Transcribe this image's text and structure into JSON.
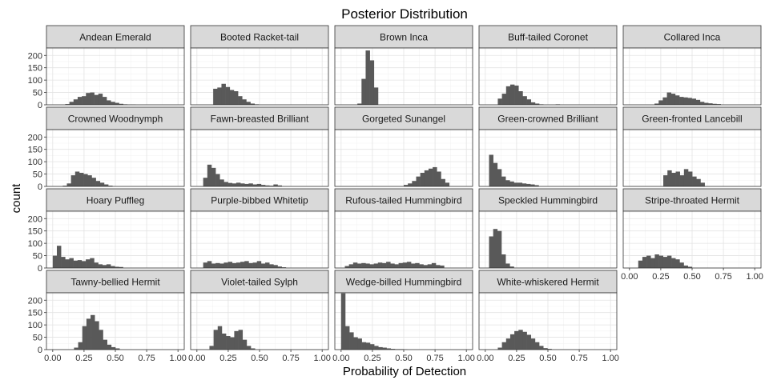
{
  "chart_data": {
    "type": "bar",
    "subtype": "faceted-histogram",
    "title": "Posterior Distribution",
    "xlabel": "Probability of Detection",
    "ylabel": "count",
    "xlim": [
      0,
      1
    ],
    "ylim": [
      0,
      230
    ],
    "x_ticks": [
      "0.00",
      "0.25",
      "0.50",
      "0.75",
      "1.00"
    ],
    "y_ticks": [
      "0",
      "50",
      "100",
      "150",
      "200"
    ],
    "grid": true,
    "bin_width": 0.033,
    "bar_color": "#595959",
    "strip_color": "#d9d9d9",
    "layout": {
      "rows": 4,
      "cols": 5
    },
    "facets": [
      {
        "name": "Andean Emerald",
        "bin_start": 0.1,
        "counts": [
          3,
          12,
          22,
          32,
          35,
          48,
          50,
          40,
          45,
          32,
          18,
          12,
          8,
          4,
          2,
          1,
          1
        ]
      },
      {
        "name": "Booted Racket-tail",
        "bin_start": 0.13,
        "counts": [
          65,
          70,
          85,
          72,
          60,
          55,
          35,
          22,
          12,
          5,
          2
        ]
      },
      {
        "name": "Brown Inca",
        "bin_start": 0.13,
        "counts": [
          5,
          105,
          220,
          180,
          70
        ]
      },
      {
        "name": "Buff-tailed Coronet",
        "bin_start": 0.1,
        "counts": [
          25,
          45,
          75,
          82,
          78,
          55,
          35,
          22,
          10,
          5,
          2,
          0,
          0,
          0,
          2
        ]
      },
      {
        "name": "Collared Inca",
        "bin_start": 0.2,
        "counts": [
          5,
          18,
          30,
          50,
          45,
          38,
          32,
          30,
          28,
          25,
          20,
          12,
          8,
          6,
          4,
          3
        ]
      },
      {
        "name": "Crowned Woodnymph",
        "bin_start": 0.08,
        "counts": [
          3,
          12,
          45,
          60,
          55,
          50,
          45,
          35,
          22,
          15,
          8,
          3
        ]
      },
      {
        "name": "Fawn-breasted Brilliant",
        "bin_start": 0.05,
        "counts": [
          35,
          88,
          75,
          50,
          28,
          18,
          14,
          12,
          15,
          12,
          10,
          12,
          8,
          10,
          6,
          4,
          3,
          8,
          4
        ]
      },
      {
        "name": "Gorgeted Sunangel",
        "bin_start": 0.5,
        "counts": [
          6,
          12,
          22,
          40,
          55,
          65,
          72,
          78,
          60,
          30,
          15
        ]
      },
      {
        "name": "Green-crowned Brilliant",
        "bin_start": 0.03,
        "counts": [
          128,
          95,
          70,
          40,
          25,
          20,
          15,
          15,
          12,
          10,
          8,
          5
        ]
      },
      {
        "name": "Green-fronted Lancebill",
        "bin_start": 0.27,
        "counts": [
          45,
          65,
          55,
          60,
          45,
          70,
          60,
          40,
          30,
          15
        ]
      },
      {
        "name": "Hoary Puffleg",
        "bin_start": 0.0,
        "counts": [
          50,
          90,
          45,
          35,
          40,
          30,
          32,
          28,
          35,
          40,
          22,
          15,
          12,
          15,
          8,
          5,
          4
        ]
      },
      {
        "name": "Purple-bibbed Whitetip",
        "bin_start": 0.05,
        "counts": [
          22,
          28,
          18,
          20,
          18,
          22,
          25,
          20,
          22,
          25,
          28,
          20,
          22,
          28,
          18,
          22,
          15,
          12,
          6,
          3
        ]
      },
      {
        "name": "Rufous-tailed Hummingbird",
        "bin_start": 0.03,
        "counts": [
          8,
          15,
          22,
          18,
          20,
          18,
          15,
          18,
          22,
          20,
          25,
          18,
          15,
          20,
          22,
          25,
          18,
          20,
          15,
          12,
          15,
          20,
          12,
          10
        ]
      },
      {
        "name": "Speckled Hummingbird",
        "bin_start": 0.03,
        "counts": [
          128,
          158,
          150,
          55,
          18,
          6
        ]
      },
      {
        "name": "Stripe-throated Hermit",
        "bin_start": 0.07,
        "counts": [
          30,
          45,
          50,
          40,
          55,
          50,
          45,
          50,
          40,
          35,
          22,
          10,
          5
        ]
      },
      {
        "name": "Tawny-bellied Hermit",
        "bin_start": 0.17,
        "counts": [
          8,
          30,
          95,
          125,
          140,
          115,
          80,
          40,
          20,
          10,
          5
        ]
      },
      {
        "name": "Violet-tailed Sylph",
        "bin_start": 0.1,
        "counts": [
          15,
          80,
          95,
          65,
          55,
          50,
          75,
          80,
          40,
          15,
          5
        ]
      },
      {
        "name": "Wedge-billed Hummingbird",
        "bin_start": 0.0,
        "counts": [
          228,
          95,
          70,
          50,
          45,
          30,
          28,
          22,
          15,
          10,
          8,
          5,
          3,
          2,
          2,
          1
        ]
      },
      {
        "name": "White-whiskered Hermit",
        "bin_start": 0.1,
        "counts": [
          8,
          30,
          45,
          62,
          75,
          80,
          72,
          60,
          45,
          30,
          15,
          6,
          3
        ]
      }
    ]
  }
}
